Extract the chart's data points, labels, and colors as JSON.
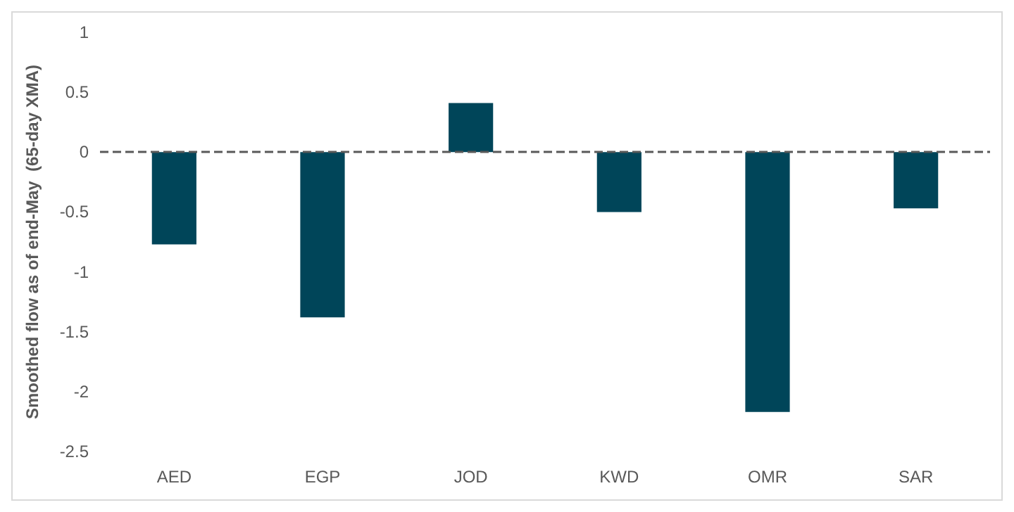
{
  "chart_data": {
    "type": "bar",
    "ylabel": "Smoothed flow as of end-May  (65-day XMA)",
    "categories": [
      "AED",
      "EGP",
      "JOD",
      "KWD",
      "OMR",
      "SAR"
    ],
    "values": [
      -0.77,
      -1.38,
      0.41,
      -0.5,
      -2.17,
      -0.47
    ],
    "color": "#004559",
    "ylim": [
      -2.5,
      1
    ],
    "yticks": [
      -2.5,
      -2,
      -1.5,
      -1,
      -0.5,
      0,
      0.5,
      1
    ],
    "grid": false,
    "ref_lines": [
      {
        "axis": "y",
        "value": 0,
        "label": null,
        "color": "#595959",
        "line_style": "dashed"
      }
    ]
  }
}
